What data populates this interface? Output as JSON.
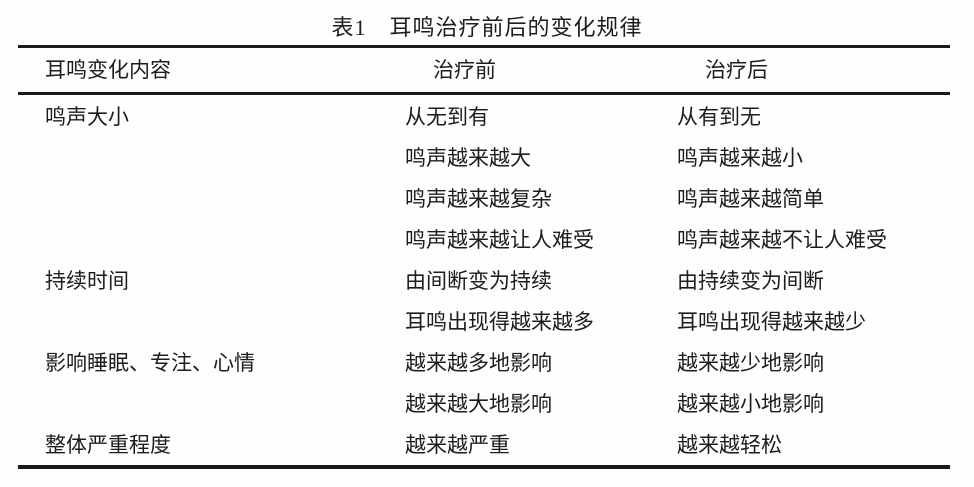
{
  "title": "表1　耳鸣治疗前后的变化规律",
  "table": {
    "headers": [
      "耳鸣变化内容",
      "治疗前",
      "治疗后"
    ],
    "rows": [
      {
        "category": "鸣声大小",
        "before": "从无到有",
        "after": "从有到无"
      },
      {
        "category": "",
        "before": "鸣声越来越大",
        "after": "鸣声越来越小"
      },
      {
        "category": "",
        "before": "鸣声越来越复杂",
        "after": "鸣声越来越简单"
      },
      {
        "category": "",
        "before": "鸣声越来越让人难受",
        "after": "鸣声越来越不让人难受"
      },
      {
        "category": "持续时间",
        "before": "由间断变为持续",
        "after": "由持续变为间断"
      },
      {
        "category": "",
        "before": "耳鸣出现得越来越多",
        "after": "耳鸣出现得越来越少"
      },
      {
        "category": "影响睡眠、专注、心情",
        "before": "越来越多地影响",
        "after": "越来越少地影响"
      },
      {
        "category": "",
        "before": "越来越大地影响",
        "after": "越来越小地影响"
      },
      {
        "category": "整体严重程度",
        "before": "越来越严重",
        "after": "越来越轻松"
      }
    ]
  },
  "colors": {
    "text": "#1d1d1f",
    "rule": "#1b1b1d",
    "background": "#fefefe"
  }
}
